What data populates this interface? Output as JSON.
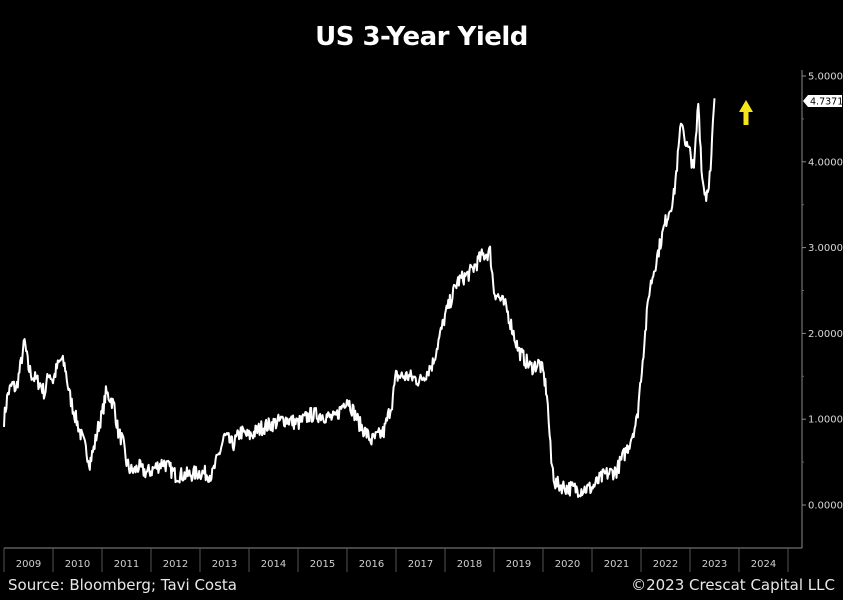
{
  "title": "US 3-Year Yield",
  "footer": {
    "source": "Source: Bloomberg; Tavi Costa",
    "copyright": "©2023 Crescat Capital LLC"
  },
  "colors": {
    "background": "#000000",
    "line": "#ffffff",
    "axis": "#8a8a8a",
    "arrow": "#f5e61a",
    "last_value_label_bg": "#ffffff",
    "last_value_label_text": "#000000"
  },
  "annotations": {
    "last_value": "4.7371",
    "arrow": "up-arrow"
  },
  "chart_data": {
    "type": "line",
    "title": "US 3-Year Yield",
    "xlabel": "",
    "ylabel": "",
    "ylim": [
      -0.5,
      5.1
    ],
    "xlim": [
      2009.0,
      2025.0
    ],
    "grid": false,
    "legend": "none",
    "y_axis_position": "right",
    "y_ticks": [
      "5.0000",
      "4.0000",
      "3.0000",
      "2.0000",
      "1.0000",
      "0.0000"
    ],
    "x_ticks": [
      "2009",
      "2010",
      "2011",
      "2012",
      "2013",
      "2014",
      "2015",
      "2016",
      "2017",
      "2018",
      "2019",
      "2020",
      "2021",
      "2022",
      "2023",
      "2024"
    ],
    "series": [
      {
        "name": "US 3-Year Yield",
        "x": [
          2009.0,
          2009.08,
          2009.17,
          2009.25,
          2009.33,
          2009.42,
          2009.5,
          2009.58,
          2009.67,
          2009.75,
          2009.83,
          2009.92,
          2010.0,
          2010.08,
          2010.17,
          2010.25,
          2010.33,
          2010.42,
          2010.5,
          2010.58,
          2010.67,
          2010.75,
          2010.83,
          2010.92,
          2011.0,
          2011.08,
          2011.17,
          2011.25,
          2011.33,
          2011.42,
          2011.5,
          2011.58,
          2011.67,
          2011.75,
          2011.83,
          2011.92,
          2012.0,
          2012.25,
          2012.5,
          2012.75,
          2013.0,
          2013.25,
          2013.42,
          2013.5,
          2013.67,
          2013.83,
          2014.0,
          2014.25,
          2014.5,
          2014.75,
          2015.0,
          2015.25,
          2015.5,
          2015.75,
          2016.0,
          2016.25,
          2016.5,
          2016.75,
          2016.92,
          2017.0,
          2017.25,
          2017.5,
          2017.75,
          2018.0,
          2018.25,
          2018.5,
          2018.75,
          2018.92,
          2019.0,
          2019.25,
          2019.5,
          2019.75,
          2019.92,
          2020.0,
          2020.08,
          2020.17,
          2020.25,
          2020.5,
          2020.75,
          2021.0,
          2021.25,
          2021.5,
          2021.75,
          2021.92,
          2022.0,
          2022.17,
          2022.33,
          2022.5,
          2022.67,
          2022.83,
          2022.92,
          2023.0,
          2023.08,
          2023.17,
          2023.25,
          2023.33,
          2023.42,
          2023.5
        ],
        "values": [
          1.0,
          1.3,
          1.4,
          1.35,
          1.6,
          1.9,
          1.6,
          1.5,
          1.45,
          1.4,
          1.3,
          1.55,
          1.45,
          1.6,
          1.7,
          1.6,
          1.3,
          1.1,
          0.95,
          0.8,
          0.65,
          0.5,
          0.65,
          0.9,
          1.05,
          1.3,
          1.25,
          1.15,
          0.85,
          0.75,
          0.5,
          0.4,
          0.4,
          0.45,
          0.4,
          0.38,
          0.4,
          0.5,
          0.35,
          0.35,
          0.38,
          0.35,
          0.65,
          0.8,
          0.7,
          0.85,
          0.8,
          0.9,
          0.95,
          1.0,
          0.95,
          1.05,
          1.05,
          1.0,
          1.25,
          0.95,
          0.75,
          0.85,
          1.2,
          1.5,
          1.5,
          1.45,
          1.65,
          2.2,
          2.6,
          2.7,
          2.9,
          2.95,
          2.5,
          2.3,
          1.8,
          1.6,
          1.65,
          1.55,
          1.3,
          0.5,
          0.25,
          0.2,
          0.18,
          0.2,
          0.35,
          0.4,
          0.7,
          1.0,
          1.5,
          2.5,
          2.9,
          3.3,
          3.6,
          4.5,
          4.2,
          4.1,
          3.9,
          4.7,
          3.8,
          3.6,
          3.9,
          4.74
        ]
      }
    ],
    "annotations": [
      {
        "type": "last-value-label",
        "value": "4.7371"
      },
      {
        "type": "arrow",
        "direction": "up",
        "color": "#f5e61a"
      }
    ]
  }
}
